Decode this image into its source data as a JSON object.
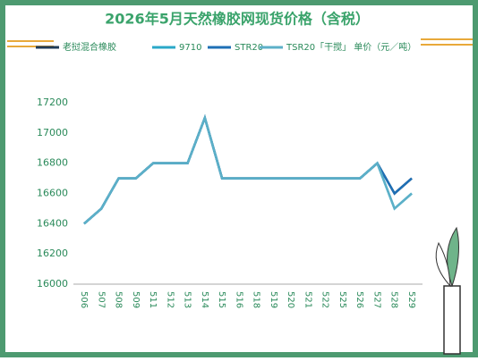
{
  "chart_data": {
    "type": "line",
    "title": "2026年5月天然橡胶网现货价格（含税）",
    "categories": [
      "506",
      "507",
      "508",
      "509",
      "511",
      "512",
      "513",
      "514",
      "515",
      "516",
      "518",
      "519",
      "520",
      "521",
      "522",
      "525",
      "526",
      "527",
      "528",
      "529"
    ],
    "series": [
      {
        "name": "老挝混合橡胶",
        "color": "#1f3b57",
        "values": [
          16400,
          16500,
          16700,
          16700,
          16800,
          16800,
          16800,
          17100,
          16700,
          16700,
          16700,
          16700,
          16700,
          16700,
          16700,
          16700,
          16700,
          16800,
          16600,
          16700
        ]
      },
      {
        "name": "9710",
        "color": "#2aa8c8",
        "values": [
          16400,
          16500,
          16700,
          16700,
          16800,
          16800,
          16800,
          17100,
          16700,
          16700,
          16700,
          16700,
          16700,
          16700,
          16700,
          16700,
          16700,
          16800,
          16500,
          16600
        ]
      },
      {
        "name": "STR20",
        "color": "#1e6fb5",
        "values": [
          16400,
          16500,
          16700,
          16700,
          16800,
          16800,
          16800,
          17100,
          16700,
          16700,
          16700,
          16700,
          16700,
          16700,
          16700,
          16700,
          16700,
          16800,
          16600,
          16700
        ]
      },
      {
        "name": "TSR20「干搅」 单价（元／吨）",
        "color": "#5cb0c8",
        "values": [
          16400,
          16500,
          16700,
          16700,
          16800,
          16800,
          16800,
          17100,
          16700,
          16700,
          16700,
          16700,
          16700,
          16700,
          16700,
          16700,
          16700,
          16800,
          16500,
          16600
        ]
      }
    ],
    "ylim": [
      16000,
      17200
    ],
    "yticks": [
      16000,
      16200,
      16400,
      16600,
      16800,
      17000,
      17200
    ],
    "grid": false
  }
}
